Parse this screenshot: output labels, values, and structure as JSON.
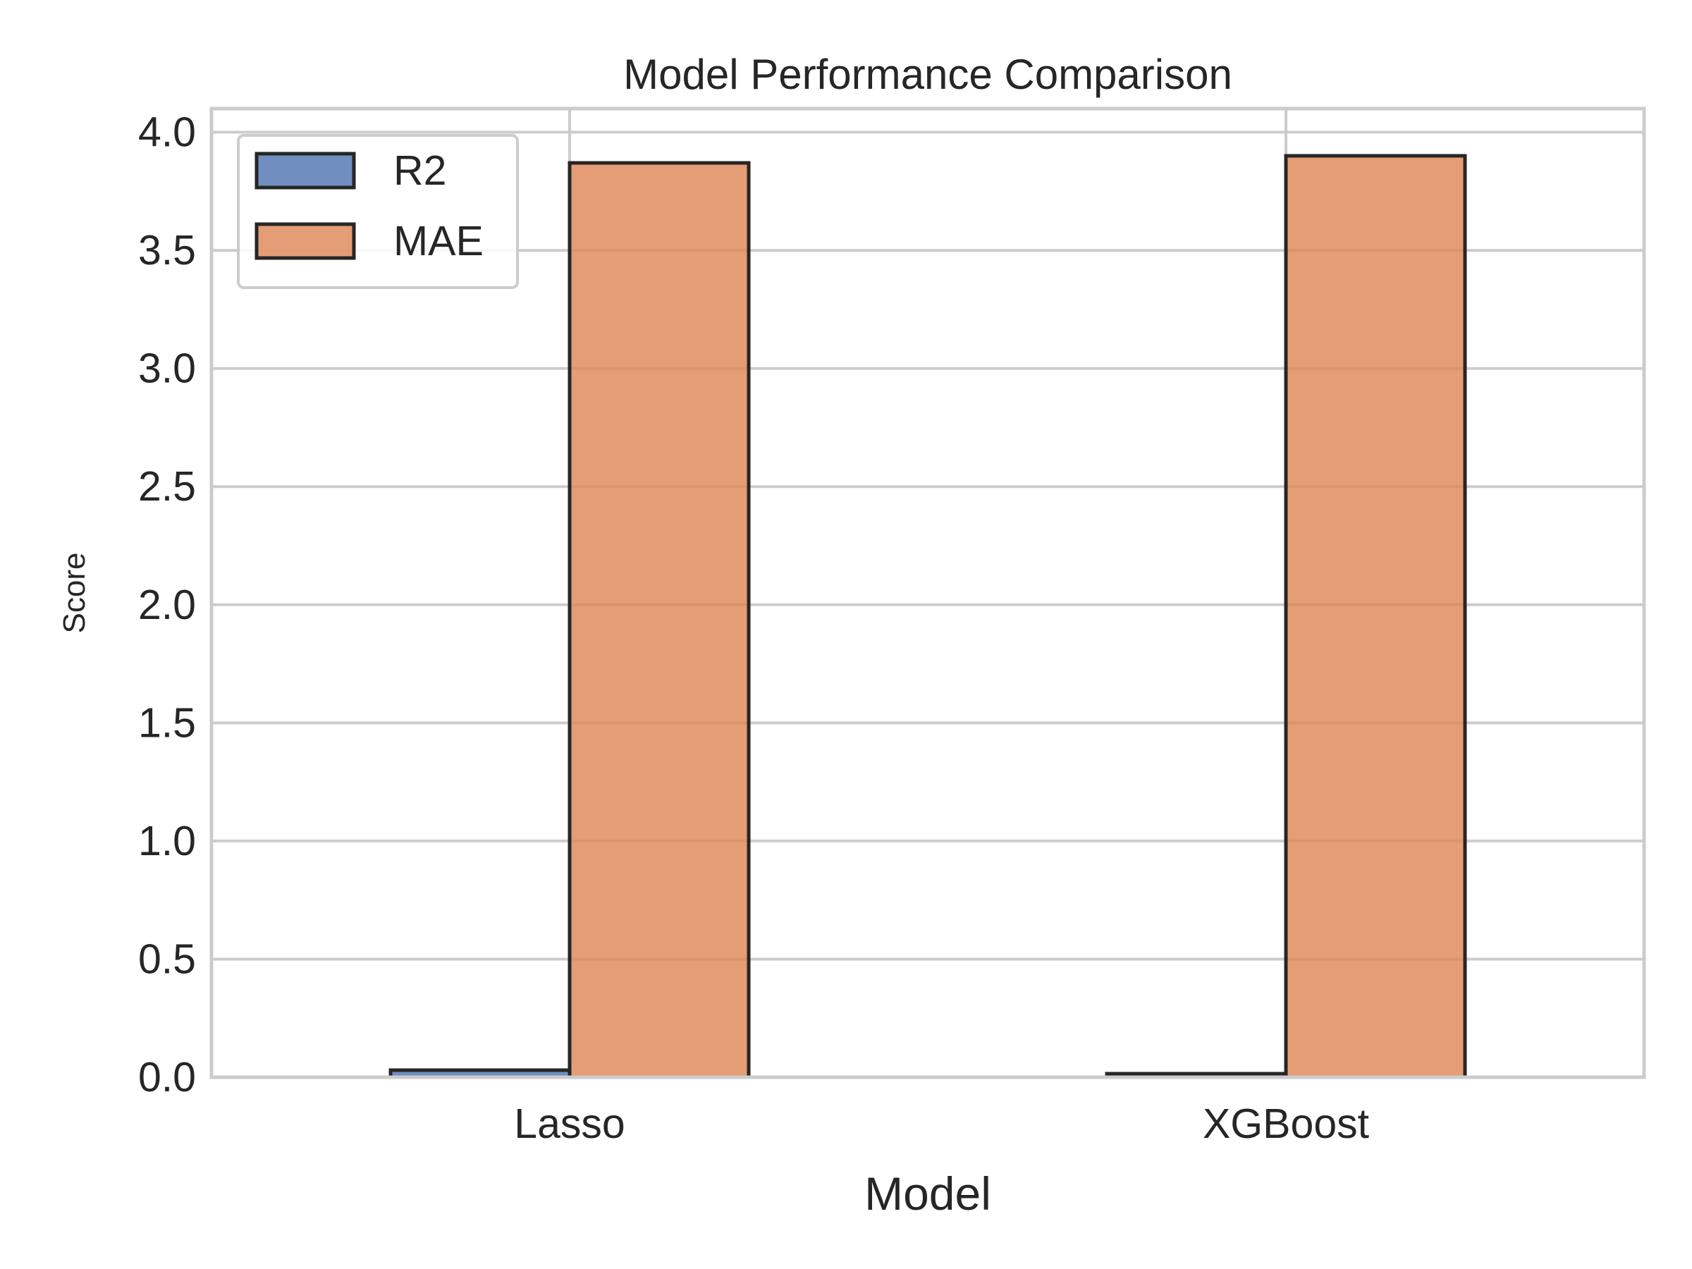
{
  "chart_data": {
    "type": "bar",
    "title": "Model Performance Comparison",
    "xlabel": "Model",
    "ylabel": "Score",
    "categories": [
      "Lasso",
      "XGBoost"
    ],
    "series": [
      {
        "name": "R2",
        "values": [
          0.03,
          0.015
        ],
        "color": "#4c72b0"
      },
      {
        "name": "MAE",
        "values": [
          3.87,
          3.9
        ],
        "color": "#dd8452"
      }
    ],
    "ylim": [
      0,
      4.1
    ],
    "yticks": [
      0.0,
      0.5,
      1.0,
      1.5,
      2.0,
      2.5,
      3.0,
      3.5,
      4.0
    ],
    "ytick_labels": [
      "0.0",
      "0.5",
      "1.0",
      "1.5",
      "2.0",
      "2.5",
      "3.0",
      "3.5",
      "4.0"
    ],
    "grid": true,
    "legend": {
      "placement": "upper-left",
      "entries": [
        "R2",
        "MAE"
      ]
    }
  }
}
